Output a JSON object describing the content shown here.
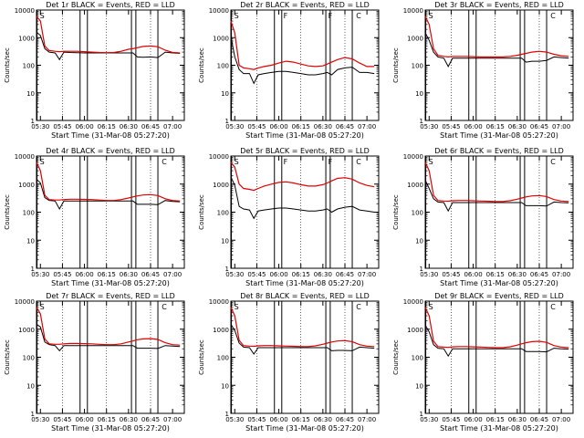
{
  "figure": {
    "background": "#ffffff",
    "colors": {
      "events": "#000000",
      "lld": "#e00000",
      "axes": "#000000"
    }
  },
  "chart_data": [
    {
      "type": "line",
      "title": "Det 1r BLACK = Events, RED = LLD",
      "xlabel": "Start Time (31-Mar-08 05:27:20)",
      "ylabel": "Counts/sec",
      "x_ticks": [
        "05:30",
        "05:45",
        "06:00",
        "06:15",
        "06:30",
        "06:45",
        "07:00"
      ],
      "y_ticks": [
        "1",
        "10",
        "100",
        "1000",
        "10000"
      ],
      "ylim": [
        1,
        10000
      ],
      "y_scale": "log",
      "markers": [
        "S"
      ],
      "legend": "none",
      "grid": "dotted verticals",
      "x": [
        "05:27",
        "05:30",
        "05:33",
        "05:36",
        "05:40",
        "05:43",
        "05:46",
        "05:50",
        "05:55",
        "06:00",
        "06:05",
        "06:10",
        "06:15",
        "06:20",
        "06:25",
        "06:30",
        "06:33",
        "06:36",
        "06:40",
        "06:45",
        "06:50",
        "06:55",
        "07:00",
        "07:05"
      ],
      "series": [
        {
          "color": "#000000",
          "values": [
            1600,
            1200,
            400,
            300,
            280,
            160,
            300,
            290,
            285,
            280,
            280,
            280,
            280,
            280,
            280,
            280,
            280,
            200,
            195,
            200,
            190,
            300,
            280,
            270
          ]
        },
        {
          "color": "#e00000",
          "values": [
            6000,
            4000,
            500,
            340,
            320,
            310,
            320,
            320,
            320,
            310,
            300,
            290,
            285,
            290,
            320,
            380,
            400,
            430,
            480,
            500,
            470,
            350,
            290,
            280
          ]
        }
      ]
    },
    {
      "type": "line",
      "title": "Det 2r BLACK = Events, RED = LLD",
      "xlabel": "Start Time (31-Mar-08 05:27:20)",
      "ylabel": "Counts/sec",
      "x_ticks": [
        "05:30",
        "05:45",
        "06:00",
        "06:15",
        "06:30",
        "06:45",
        "07:00"
      ],
      "y_ticks": [
        "1",
        "10",
        "100",
        "1000",
        "10000"
      ],
      "ylim": [
        1,
        10000
      ],
      "y_scale": "log",
      "markers": [
        "S",
        "F",
        "F",
        "C"
      ],
      "legend": "none",
      "grid": "dotted verticals",
      "x": [
        "05:27",
        "05:30",
        "05:33",
        "05:36",
        "05:40",
        "05:43",
        "05:46",
        "05:50",
        "05:55",
        "06:00",
        "06:05",
        "06:10",
        "06:15",
        "06:20",
        "06:25",
        "06:30",
        "06:33",
        "06:36",
        "06:40",
        "06:45",
        "06:50",
        "06:55",
        "07:00",
        "07:05"
      ],
      "series": [
        {
          "color": "#000000",
          "values": [
            1100,
            200,
            70,
            50,
            50,
            22,
            45,
            50,
            55,
            60,
            60,
            55,
            50,
            45,
            45,
            50,
            55,
            45,
            70,
            80,
            85,
            55,
            55,
            50
          ]
        },
        {
          "color": "#e00000",
          "values": [
            4000,
            1500,
            100,
            80,
            75,
            70,
            80,
            90,
            100,
            120,
            140,
            130,
            110,
            95,
            90,
            95,
            110,
            130,
            160,
            190,
            170,
            120,
            90,
            90
          ]
        }
      ]
    },
    {
      "type": "line",
      "title": "Det 3r BLACK = Events, RED = LLD",
      "xlabel": "Start Time (31-Mar-08 05:27:20)",
      "ylabel": "Counts/sec",
      "x_ticks": [
        "05:30",
        "05:45",
        "06:00",
        "06:15",
        "06:30",
        "06:45",
        "07:00"
      ],
      "y_ticks": [
        "1",
        "10",
        "100",
        "1000",
        "10000"
      ],
      "ylim": [
        1,
        10000
      ],
      "y_scale": "log",
      "markers": [
        "S",
        "C"
      ],
      "legend": "none",
      "grid": "dotted verticals",
      "x": [
        "05:27",
        "05:30",
        "05:33",
        "05:36",
        "05:40",
        "05:43",
        "05:46",
        "05:50",
        "05:55",
        "06:00",
        "06:05",
        "06:10",
        "06:15",
        "06:20",
        "06:25",
        "06:30",
        "06:33",
        "06:36",
        "06:40",
        "06:45",
        "06:50",
        "06:55",
        "07:00",
        "07:05"
      ],
      "series": [
        {
          "color": "#000000",
          "values": [
            1500,
            800,
            300,
            200,
            180,
            90,
            180,
            180,
            180,
            180,
            180,
            180,
            180,
            180,
            180,
            180,
            180,
            130,
            140,
            140,
            150,
            200,
            190,
            180
          ]
        },
        {
          "color": "#e00000",
          "values": [
            6000,
            3000,
            400,
            230,
            210,
            200,
            210,
            210,
            210,
            205,
            200,
            200,
            200,
            200,
            210,
            230,
            250,
            270,
            300,
            320,
            300,
            250,
            220,
            210
          ]
        }
      ]
    },
    {
      "type": "line",
      "title": "Det 4r BLACK = Events, RED = LLD",
      "xlabel": "Start Time (31-Mar-08 05:27:20)",
      "ylabel": "Counts/sec",
      "x_ticks": [
        "05:30",
        "05:45",
        "06:00",
        "06:15",
        "06:30",
        "06:45",
        "07:00"
      ],
      "y_ticks": [
        "1",
        "10",
        "100",
        "1000",
        "10000"
      ],
      "ylim": [
        1,
        10000
      ],
      "y_scale": "log",
      "markers": [
        "S",
        "C"
      ],
      "legend": "none",
      "grid": "dotted verticals",
      "x": [
        "05:27",
        "05:30",
        "05:33",
        "05:36",
        "05:40",
        "05:43",
        "05:46",
        "05:50",
        "05:55",
        "06:00",
        "06:05",
        "06:10",
        "06:15",
        "06:20",
        "06:25",
        "06:30",
        "06:33",
        "06:36",
        "06:40",
        "06:45",
        "06:50",
        "06:55",
        "07:00",
        "07:05"
      ],
      "series": [
        {
          "color": "#000000",
          "values": [
            1500,
            1100,
            330,
            260,
            250,
            130,
            250,
            250,
            250,
            250,
            250,
            250,
            250,
            250,
            250,
            250,
            250,
            190,
            190,
            190,
            185,
            260,
            240,
            235
          ]
        },
        {
          "color": "#e00000",
          "values": [
            6000,
            3000,
            400,
            280,
            270,
            270,
            280,
            290,
            290,
            285,
            280,
            270,
            260,
            260,
            280,
            320,
            350,
            380,
            410,
            420,
            390,
            300,
            260,
            250
          ]
        }
      ]
    },
    {
      "type": "line",
      "title": "Det 5r BLACK = Events, RED = LLD",
      "xlabel": "Start Time (31-Mar-08 05:27:20)",
      "ylabel": "Counts/sec",
      "x_ticks": [
        "05:30",
        "05:45",
        "06:00",
        "06:15",
        "06:30",
        "06:45",
        "07:00"
      ],
      "y_ticks": [
        "1",
        "10",
        "100",
        "1000",
        "10000"
      ],
      "ylim": [
        1,
        10000
      ],
      "y_scale": "log",
      "markers": [
        "S",
        "F",
        "F",
        "C"
      ],
      "legend": "none",
      "grid": "dotted verticals",
      "x": [
        "05:27",
        "05:30",
        "05:33",
        "05:36",
        "05:40",
        "05:43",
        "05:46",
        "05:50",
        "05:55",
        "06:00",
        "06:05",
        "06:10",
        "06:15",
        "06:20",
        "06:25",
        "06:30",
        "06:33",
        "06:36",
        "06:40",
        "06:45",
        "06:50",
        "06:55",
        "07:00",
        "07:05"
      ],
      "series": [
        {
          "color": "#000000",
          "values": [
            1800,
            900,
            160,
            130,
            120,
            60,
            110,
            120,
            130,
            140,
            140,
            130,
            120,
            110,
            110,
            120,
            130,
            100,
            130,
            150,
            160,
            120,
            110,
            100
          ]
        },
        {
          "color": "#e00000",
          "values": [
            6000,
            4000,
            1000,
            700,
            650,
            600,
            700,
            850,
            1000,
            1150,
            1200,
            1100,
            950,
            850,
            850,
            950,
            1100,
            1300,
            1600,
            1700,
            1500,
            1100,
            900,
            800
          ]
        }
      ]
    },
    {
      "type": "line",
      "title": "Det 6r BLACK = Events, RED = LLD",
      "xlabel": "Start Time (31-Mar-08 05:27:20)",
      "ylabel": "Counts/sec",
      "x_ticks": [
        "05:30",
        "05:45",
        "06:00",
        "06:15",
        "06:30",
        "06:45",
        "07:00"
      ],
      "y_ticks": [
        "1",
        "10",
        "100",
        "1000",
        "10000"
      ],
      "ylim": [
        1,
        10000
      ],
      "y_scale": "log",
      "markers": [
        "S",
        "C"
      ],
      "legend": "none",
      "grid": "dotted verticals",
      "x": [
        "05:27",
        "05:30",
        "05:33",
        "05:36",
        "05:40",
        "05:43",
        "05:46",
        "05:50",
        "05:55",
        "06:00",
        "06:05",
        "06:10",
        "06:15",
        "06:20",
        "06:25",
        "06:30",
        "06:33",
        "06:36",
        "06:40",
        "06:45",
        "06:50",
        "06:55",
        "07:00",
        "07:05"
      ],
      "series": [
        {
          "color": "#000000",
          "values": [
            1400,
            700,
            300,
            230,
            220,
            110,
            220,
            220,
            220,
            220,
            220,
            220,
            220,
            220,
            220,
            220,
            220,
            170,
            170,
            170,
            165,
            230,
            220,
            215
          ]
        },
        {
          "color": "#e00000",
          "values": [
            6000,
            3000,
            400,
            260,
            250,
            245,
            255,
            260,
            260,
            255,
            250,
            245,
            240,
            240,
            255,
            290,
            320,
            350,
            380,
            390,
            360,
            280,
            250,
            240
          ]
        }
      ]
    },
    {
      "type": "line",
      "title": "Det 7r BLACK = Events, RED = LLD",
      "xlabel": "Start Time (31-Mar-08 05:27:20)",
      "ylabel": "Counts/sec",
      "x_ticks": [
        "05:30",
        "05:45",
        "06:00",
        "06:15",
        "06:30",
        "06:45",
        "07:00"
      ],
      "y_ticks": [
        "1",
        "10",
        "100",
        "1000",
        "10000"
      ],
      "ylim": [
        1,
        10000
      ],
      "y_scale": "log",
      "markers": [
        "S",
        "C"
      ],
      "legend": "none",
      "grid": "dotted verticals",
      "x": [
        "05:27",
        "05:30",
        "05:33",
        "05:36",
        "05:40",
        "05:43",
        "05:46",
        "05:50",
        "05:55",
        "06:00",
        "06:05",
        "06:10",
        "06:15",
        "06:20",
        "06:25",
        "06:30",
        "06:33",
        "06:36",
        "06:40",
        "06:45",
        "06:50",
        "06:55",
        "07:00",
        "07:05"
      ],
      "series": [
        {
          "color": "#000000",
          "values": [
            1500,
            1200,
            350,
            280,
            260,
            170,
            260,
            260,
            260,
            260,
            260,
            260,
            260,
            260,
            260,
            260,
            260,
            210,
            210,
            210,
            205,
            260,
            250,
            240
          ]
        },
        {
          "color": "#e00000",
          "values": [
            6000,
            3500,
            450,
            300,
            290,
            290,
            300,
            310,
            310,
            305,
            300,
            290,
            280,
            280,
            300,
            350,
            380,
            420,
            450,
            460,
            430,
            330,
            280,
            270
          ]
        }
      ]
    },
    {
      "type": "line",
      "title": "Det 8r BLACK = Events, RED = LLD",
      "xlabel": "Start Time (31-Mar-08 05:27:20)",
      "ylabel": "Counts/sec",
      "x_ticks": [
        "05:30",
        "05:45",
        "06:00",
        "06:15",
        "06:30",
        "06:45",
        "07:00"
      ],
      "y_ticks": [
        "1",
        "10",
        "100",
        "1000",
        "10000"
      ],
      "ylim": [
        1,
        10000
      ],
      "y_scale": "log",
      "markers": [
        "S",
        "C"
      ],
      "legend": "none",
      "grid": "dotted verticals",
      "x": [
        "05:27",
        "05:30",
        "05:33",
        "05:36",
        "05:40",
        "05:43",
        "05:46",
        "05:50",
        "05:55",
        "06:00",
        "06:05",
        "06:10",
        "06:15",
        "06:20",
        "06:25",
        "06:30",
        "06:33",
        "06:36",
        "06:40",
        "06:45",
        "06:50",
        "06:55",
        "07:00",
        "07:05"
      ],
      "series": [
        {
          "color": "#000000",
          "values": [
            1500,
            900,
            320,
            230,
            220,
            130,
            220,
            220,
            220,
            220,
            220,
            220,
            220,
            220,
            220,
            220,
            220,
            170,
            175,
            175,
            170,
            230,
            220,
            210
          ]
        },
        {
          "color": "#e00000",
          "values": [
            6000,
            3000,
            400,
            260,
            250,
            245,
            255,
            260,
            260,
            255,
            250,
            245,
            240,
            240,
            255,
            290,
            320,
            350,
            380,
            390,
            360,
            280,
            250,
            240
          ]
        }
      ]
    },
    {
      "type": "line",
      "title": "Det 9r BLACK = Events, RED = LLD",
      "xlabel": "Start Time (31-Mar-08 05:27:20)",
      "ylabel": "Counts/sec",
      "x_ticks": [
        "05:30",
        "05:45",
        "06:00",
        "06:15",
        "06:30",
        "06:45",
        "07:00"
      ],
      "y_ticks": [
        "1",
        "10",
        "100",
        "1000",
        "10000"
      ],
      "ylim": [
        1,
        10000
      ],
      "y_scale": "log",
      "markers": [
        "S",
        "C"
      ],
      "legend": "none",
      "grid": "dotted verticals",
      "x": [
        "05:27",
        "05:30",
        "05:33",
        "05:36",
        "05:40",
        "05:43",
        "05:46",
        "05:50",
        "05:55",
        "06:00",
        "06:05",
        "06:10",
        "06:15",
        "06:20",
        "06:25",
        "06:30",
        "06:33",
        "06:36",
        "06:40",
        "06:45",
        "06:50",
        "06:55",
        "07:00",
        "07:05"
      ],
      "series": [
        {
          "color": "#000000",
          "values": [
            1400,
            800,
            280,
            210,
            200,
            110,
            200,
            200,
            200,
            200,
            200,
            200,
            200,
            200,
            200,
            200,
            200,
            160,
            160,
            160,
            155,
            210,
            200,
            195
          ]
        },
        {
          "color": "#e00000",
          "values": [
            6000,
            3000,
            380,
            240,
            230,
            225,
            235,
            240,
            240,
            235,
            230,
            225,
            220,
            220,
            235,
            270,
            300,
            330,
            360,
            370,
            340,
            260,
            230,
            220
          ]
        }
      ]
    }
  ]
}
